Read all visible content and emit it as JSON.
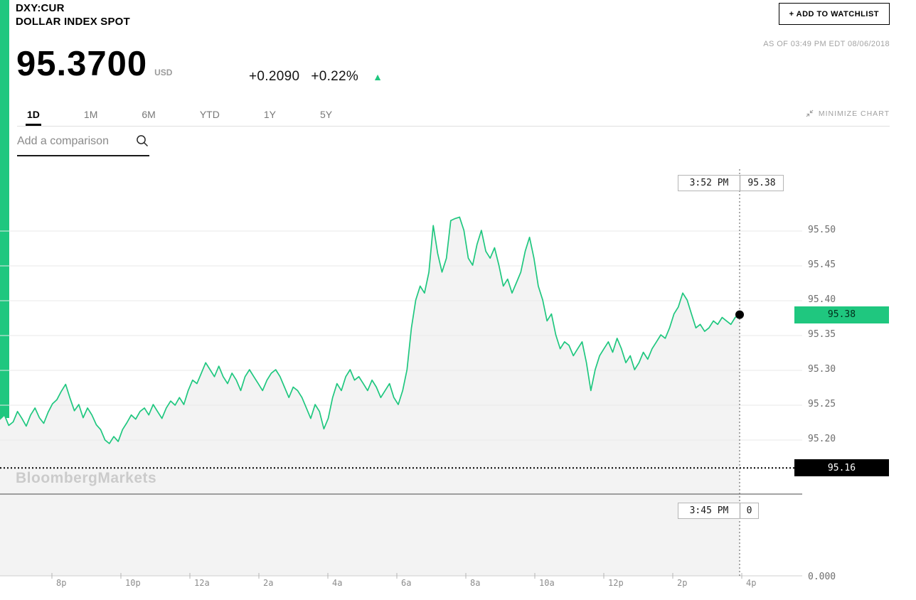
{
  "header": {
    "ticker": "DXY:CUR",
    "name": "DOLLAR INDEX SPOT",
    "watchlist_button": "+ ADD TO WATCHLIST",
    "as_of": "AS OF 03:49 PM EDT 08/06/2018",
    "price": "95.3700",
    "currency": "USD",
    "change": "+0.2090",
    "change_pct": "+0.22%",
    "up_arrow": "▲"
  },
  "tabs": {
    "items": [
      "1D",
      "1M",
      "6M",
      "YTD",
      "1Y",
      "5Y"
    ],
    "active": "1D",
    "minimize_label": "MINIMIZE CHART"
  },
  "comparison": {
    "placeholder": "Add a comparison"
  },
  "watermark": "BloombergMarkets",
  "colors": {
    "green": "#1fc77f",
    "fill": "#f3f3f3",
    "grid": "#e9e9e9",
    "axis": "#cfcfcf",
    "tick": "#b5b5b5",
    "separator": "#4a4a4a",
    "crosshair": "#555555",
    "prev_close_line": "#000000",
    "dot": "#000000"
  },
  "chart_data": {
    "type": "line",
    "title": "DXY:CUR Dollar Index Spot intraday (1D)",
    "x_labels": [
      "8p",
      "10p",
      "12a",
      "2a",
      "4a",
      "6a",
      "8a",
      "10a",
      "12p",
      "2p",
      "4p"
    ],
    "y_ticks": [
      95.5,
      95.45,
      95.4,
      95.35,
      95.3,
      95.25,
      95.2
    ],
    "y_tick_labels": [
      "95.50",
      "95.45",
      "95.40",
      "95.35",
      "95.30",
      "95.25",
      "95.20"
    ],
    "y_axis_zero_label": "0.000",
    "prev_close": 95.16,
    "last_price": 95.38,
    "badge_last": "95.38",
    "badge_prev_close": "95.16",
    "crosshair_top": {
      "time": "3:52 PM",
      "value": "95.38"
    },
    "crosshair_bottom": {
      "time": "3:45 PM",
      "value": "0"
    },
    "prices": [
      95.23,
      95.236,
      95.221,
      95.226,
      95.241,
      95.231,
      95.22,
      95.236,
      95.246,
      95.232,
      95.224,
      95.24,
      95.252,
      95.258,
      95.27,
      95.28,
      95.26,
      95.242,
      95.251,
      95.232,
      95.246,
      95.236,
      95.222,
      95.215,
      95.2,
      95.195,
      95.205,
      95.198,
      95.215,
      95.225,
      95.236,
      95.23,
      95.241,
      95.246,
      95.236,
      95.251,
      95.241,
      95.231,
      95.246,
      95.256,
      95.25,
      95.261,
      95.251,
      95.271,
      95.286,
      95.281,
      95.296,
      95.311,
      95.301,
      95.291,
      95.306,
      95.291,
      95.281,
      95.296,
      95.286,
      95.271,
      95.291,
      95.301,
      95.291,
      95.281,
      95.271,
      95.286,
      95.296,
      95.301,
      95.291,
      95.276,
      95.261,
      95.276,
      95.271,
      95.261,
      95.246,
      95.231,
      95.251,
      95.241,
      95.216,
      95.231,
      95.261,
      95.281,
      95.271,
      95.291,
      95.301,
      95.286,
      95.291,
      95.281,
      95.271,
      95.286,
      95.276,
      95.261,
      95.271,
      95.281,
      95.261,
      95.251,
      95.271,
      95.301,
      95.361,
      95.401,
      95.421,
      95.411,
      95.441,
      95.508,
      95.468,
      95.441,
      95.461,
      95.515,
      95.518,
      95.52,
      95.501,
      95.461,
      95.451,
      95.481,
      95.501,
      95.471,
      95.461,
      95.476,
      95.451,
      95.421,
      95.431,
      95.411,
      95.426,
      95.441,
      95.471,
      95.491,
      95.461,
      95.421,
      95.401,
      95.371,
      95.381,
      95.351,
      95.331,
      95.341,
      95.336,
      95.321,
      95.331,
      95.341,
      95.311,
      95.271,
      95.301,
      95.321,
      95.331,
      95.341,
      95.326,
      95.346,
      95.331,
      95.311,
      95.321,
      95.301,
      95.311,
      95.326,
      95.316,
      95.331,
      95.341,
      95.351,
      95.346,
      95.361,
      95.381,
      95.391,
      95.411,
      95.401,
      95.381,
      95.361,
      95.366,
      95.356,
      95.361,
      95.371,
      95.366,
      95.376,
      95.371,
      95.366,
      95.376,
      95.38
    ]
  }
}
